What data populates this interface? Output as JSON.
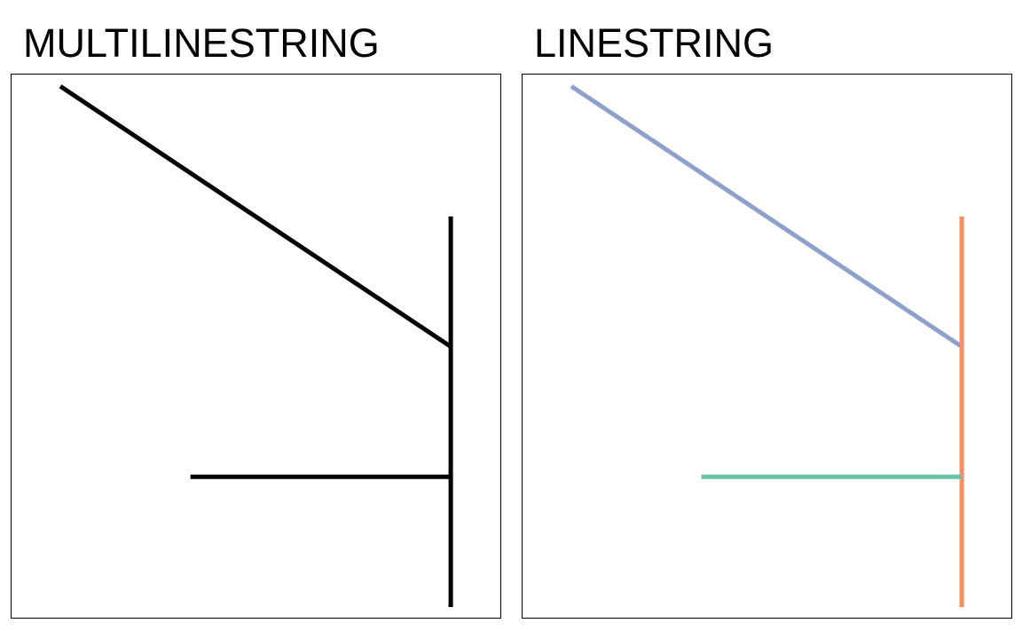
{
  "chart_data": [
    {
      "type": "line",
      "title": "MULTILINESTRING",
      "xlim": [
        0,
        3
      ],
      "ylim": [
        0,
        4
      ],
      "grid": false,
      "series": [
        {
          "color": "#000000",
          "points": [
            [
              0,
              4
            ],
            [
              3,
              2
            ]
          ]
        },
        {
          "color": "#000000",
          "points": [
            [
              3,
              0
            ],
            [
              3,
              3
            ]
          ]
        },
        {
          "color": "#000000",
          "points": [
            [
              1,
              1
            ],
            [
              3,
              1
            ]
          ]
        }
      ]
    },
    {
      "type": "line",
      "title": "LINESTRING",
      "xlim": [
        0,
        3
      ],
      "ylim": [
        0,
        4
      ],
      "grid": false,
      "series": [
        {
          "color": "#8DA0CB",
          "points": [
            [
              0,
              4
            ],
            [
              3,
              2
            ]
          ]
        },
        {
          "color": "#FC8D62",
          "points": [
            [
              3,
              0
            ],
            [
              3,
              3
            ]
          ]
        },
        {
          "color": "#66C2A5",
          "points": [
            [
              1,
              1
            ],
            [
              3,
              1
            ]
          ]
        }
      ]
    }
  ]
}
